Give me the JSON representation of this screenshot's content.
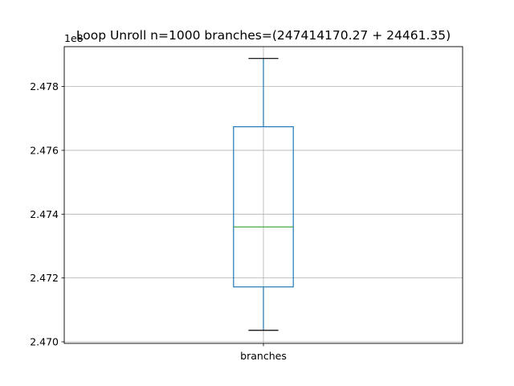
{
  "chart_data": {
    "type": "box",
    "title": "Loop Unroll n=1000  branches=(247414170.27 + 24461.35)",
    "categories": [
      "branches"
    ],
    "y_offset_label": "1e8",
    "y_scale": 100000000,
    "ylim": [
      2.46995,
      2.47925
    ],
    "yticks": [
      2.47,
      2.472,
      2.474,
      2.476,
      2.478
    ],
    "ytick_labels": [
      "2.470",
      "2.472",
      "2.474",
      "2.476",
      "2.478"
    ],
    "grid": true,
    "boxes": [
      {
        "name": "branches",
        "whisker_low": 2.47036,
        "q1": 2.47172,
        "median": 2.4736,
        "q3": 2.47674,
        "whisker_high": 2.47888
      }
    ],
    "colors": {
      "box": "#1f77b4",
      "median": "#2ca02c",
      "whisker_cap": "#000000",
      "grid": "#b0b0b0",
      "axes": "#000000"
    }
  }
}
